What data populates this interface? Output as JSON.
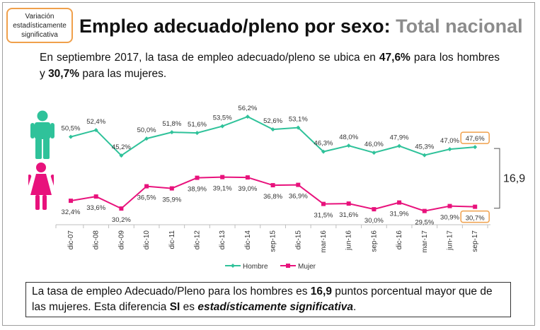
{
  "badge": {
    "text": "Variación estadísticamente significativa"
  },
  "title": {
    "main": "Empleo adecuado/pleno por sexo:",
    "sub": "Total nacional"
  },
  "intro": {
    "p1": "En septiembre 2017, la tasa de empleo adecuado/pleno se ubica en ",
    "v1": "47,6%",
    "p2": " para los hombres y ",
    "v2": "30,7%",
    "p3": " para las mujeres."
  },
  "footer": {
    "p1": "La tasa de empleo Adecuado/Pleno para los hombres es ",
    "v1": "16,9",
    "p2": " puntos porcentual mayor que de las mujeres. Esta diferencia ",
    "v2": "SI",
    "p3": " es ",
    "v3": "estadísticamente significativa",
    "p4": "."
  },
  "icons": {
    "male": "man-icon",
    "female": "woman-icon"
  },
  "chart_data": {
    "type": "line",
    "categories": [
      "dic-07",
      "dic-08",
      "dic-09",
      "dic-10",
      "dic-11",
      "dic-12",
      "dic-13",
      "dic-14",
      "sep-15",
      "dic-15",
      "mar-16",
      "jun-16",
      "sep-16",
      "dic-16",
      "mar-17",
      "jun-17",
      "sep-17"
    ],
    "series": [
      {
        "name": "Hombre",
        "color": "#2fc29a",
        "values": [
          50.5,
          52.4,
          45.2,
          50.0,
          51.8,
          51.6,
          53.5,
          56.2,
          52.6,
          53.1,
          46.3,
          48.0,
          46.0,
          47.9,
          45.3,
          47.0,
          47.6
        ],
        "labels": [
          "50,5%",
          "52,4%",
          "45,2%",
          "50,0%",
          "51,8%",
          "51,6%",
          "53,5%",
          "56,2%",
          "52,6%",
          "53,1%",
          "46,3%",
          "48,0%",
          "46,0%",
          "47,9%",
          "45,3%",
          "47,0%",
          "47,6%"
        ]
      },
      {
        "name": "Mujer",
        "color": "#e8127c",
        "values": [
          32.4,
          33.6,
          30.2,
          36.5,
          35.9,
          38.9,
          39.1,
          39.0,
          36.8,
          36.9,
          31.5,
          31.6,
          30.0,
          31.9,
          29.5,
          30.9,
          30.7
        ],
        "labels": [
          "32,4%",
          "33,6%",
          "30,2%",
          "36,5%",
          "35,9%",
          "38,9%",
          "39,1%",
          "39,0%",
          "36,8%",
          "36,9%",
          "31,5%",
          "31,6%",
          "30,0%",
          "31,9%",
          "29,5%",
          "30,9%",
          "30,7%"
        ]
      }
    ],
    "difference_label": "16,9",
    "highlight_color": "#f0a04b",
    "legend_position": "bottom"
  }
}
